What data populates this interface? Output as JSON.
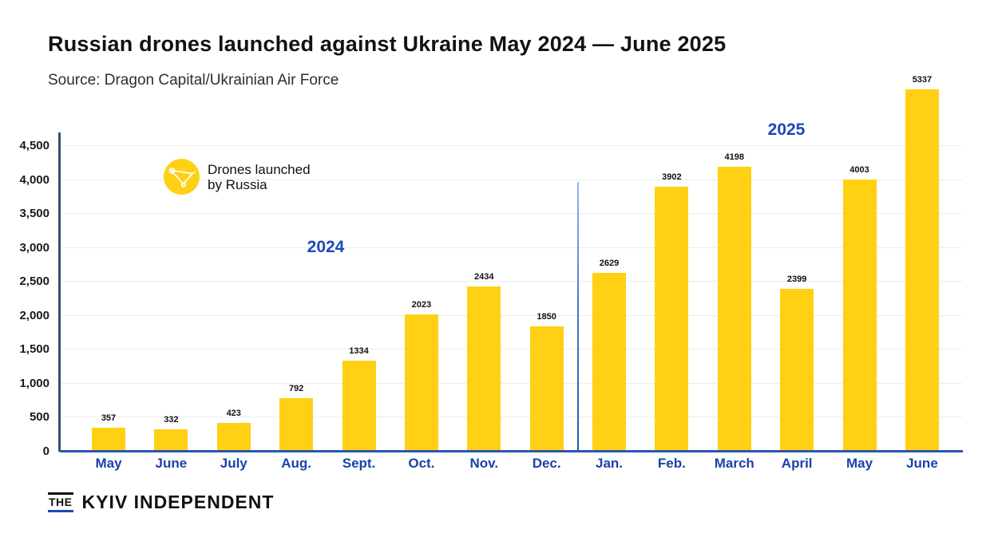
{
  "header": {
    "title": "Russian drones launched against Ukraine May 2024 — June 2025",
    "source": "Source: Dragon Capital/Ukrainian Air Force"
  },
  "legend": {
    "icon": "drone-icon",
    "line1": "Drones launched",
    "line2": "by Russia"
  },
  "chart_data": {
    "type": "bar",
    "title": "Russian drones launched against Ukraine May 2024 — June 2025",
    "source": "Dragon Capital/Ukrainian Air Force",
    "categories": [
      "May",
      "June",
      "July",
      "Aug.",
      "Sept.",
      "Oct.",
      "Nov.",
      "Dec.",
      "Jan.",
      "Feb.",
      "March",
      "April",
      "May",
      "June"
    ],
    "series": [
      {
        "name": "Drones launched by Russia",
        "values": [
          357,
          332,
          423,
          792,
          1334,
          2023,
          2434,
          1850,
          2629,
          3902,
          4198,
          2399,
          4003,
          5337
        ]
      }
    ],
    "year_labels": [
      "2024",
      "2025"
    ],
    "year_split_after_category_index": 7,
    "ylabel": "",
    "xlabel": "",
    "ylim": [
      0,
      4500
    ],
    "ytick_values": [
      0,
      500,
      1000,
      1500,
      2000,
      2500,
      3000,
      3500,
      4000,
      4500
    ],
    "ytick_labels": [
      "0",
      "500",
      "1,000",
      "1,500",
      "2,000",
      "2,500",
      "3,000",
      "3,500",
      "4,000",
      "4,500"
    ],
    "grid": true,
    "legend_position": "inside-top-left",
    "colors": {
      "bar": "#ffd013",
      "month_label": "#1b42a9",
      "year_label": "#1c49b8",
      "x_axis": "#2a57ae",
      "y_axis": "#35506f",
      "gridline": "#ececec",
      "value_label": "#111111"
    }
  },
  "footer": {
    "the": "THE",
    "name": "KYIV INDEPENDENT"
  }
}
